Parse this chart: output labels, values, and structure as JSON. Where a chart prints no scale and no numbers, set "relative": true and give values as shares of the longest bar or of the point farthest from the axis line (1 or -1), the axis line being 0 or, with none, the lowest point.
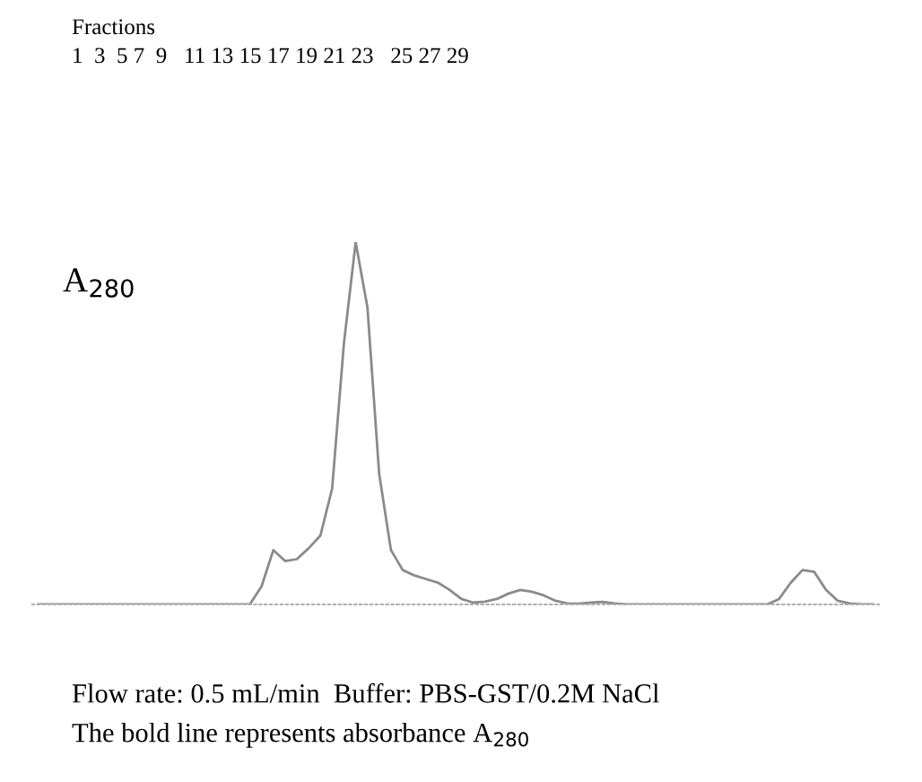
{
  "chart_data": {
    "type": "line",
    "relative": true,
    "ylabel": "A$_{280}$",
    "annotations": [
      "Fractions",
      "1  3  5 7  9   11 13 15 17 19 21 23   25 27 29",
      "Flow rate: 0.5 mL/min  Buffer: PBS-GST/0.2M NaCl",
      "The bold line represents absorbance A$_{280}$"
    ],
    "categories": [
      null,
      null,
      null,
      null,
      null,
      null,
      null,
      null,
      null,
      null,
      null,
      null,
      null,
      null,
      null,
      null,
      null,
      null,
      null,
      null,
      null,
      null,
      null,
      null,
      null,
      null,
      null,
      null,
      null,
      null,
      null,
      null,
      null,
      null,
      null,
      null,
      null,
      null,
      null,
      null,
      null,
      null,
      null,
      null,
      null,
      null,
      null,
      null,
      null,
      null,
      null,
      null,
      null,
      null,
      null,
      null,
      null,
      null,
      null,
      null,
      null,
      null,
      null,
      null,
      null,
      null,
      null,
      null,
      null,
      null,
      null,
      null
    ],
    "series": [
      {
        "color": "#8a8a8a",
        "values": [
          0,
          0,
          0,
          0,
          0,
          0,
          0,
          0,
          0,
          0,
          0,
          0,
          0,
          0,
          0,
          0,
          0,
          0,
          0,
          0.05,
          0.15,
          0.12,
          0.125,
          0.155,
          0.19,
          0.32,
          0.72,
          1.0,
          0.82,
          0.36,
          0.15,
          0.095,
          0.08,
          0.07,
          0.06,
          0.04,
          0.015,
          0.005,
          0.008,
          0.015,
          0.03,
          0.04,
          0.035,
          0.025,
          0.01,
          0.003,
          0.002,
          0.005,
          0.007,
          0.003,
          0,
          0,
          0,
          0,
          0,
          0,
          0,
          0,
          0,
          0,
          0,
          0,
          0,
          0.015,
          0.06,
          0.095,
          0.09,
          0.04,
          0.01,
          0.003,
          0,
          0
        ]
      }
    ],
    "marker": "none",
    "line_style": "solid",
    "grid": false,
    "legend": false
  }
}
